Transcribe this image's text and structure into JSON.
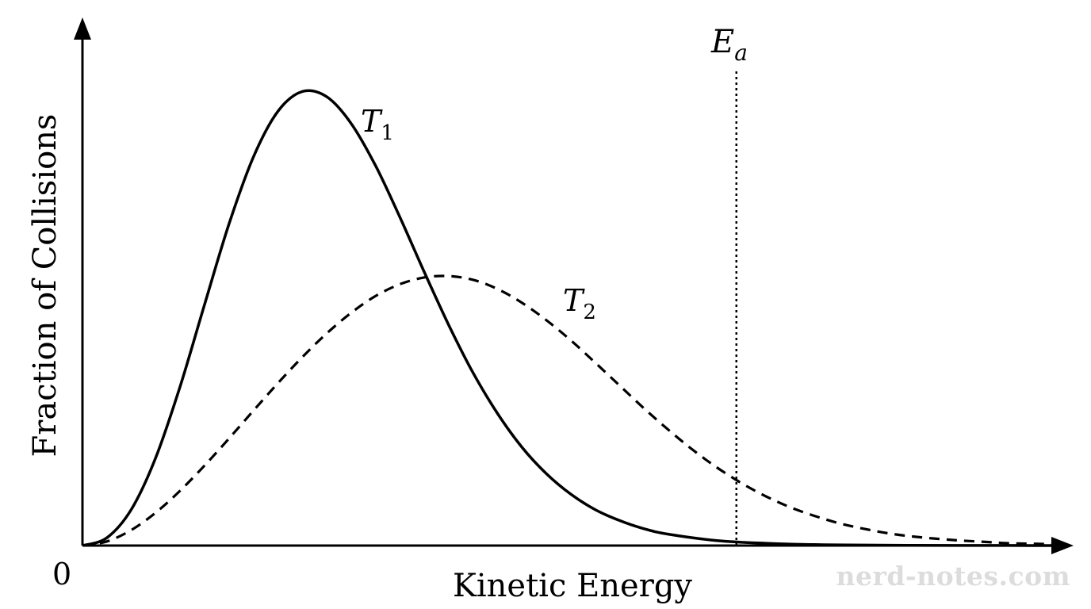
{
  "chart_data": {
    "type": "line",
    "title": "",
    "xlabel": "Kinetic Energy",
    "ylabel": "Fraction of Collisions",
    "origin_label": "0",
    "xlim": [
      0,
      10
    ],
    "ylim": [
      0,
      1
    ],
    "grid": false,
    "legend": "none",
    "series": [
      {
        "name": "T",
        "subscript": "1",
        "style": "solid",
        "x": [
          0,
          0.25,
          0.5,
          0.75,
          1.0,
          1.25,
          1.5,
          1.75,
          2.0,
          2.25,
          2.5,
          2.75,
          3.0,
          3.25,
          3.5,
          3.75,
          4.0,
          4.25,
          4.5,
          4.75,
          5.0,
          5.25,
          5.5,
          5.75,
          6.0,
          6.5,
          7.0,
          7.5,
          8.0,
          8.5,
          9.0,
          9.5,
          10.0
        ],
        "y": [
          0.0,
          0.017,
          0.079,
          0.192,
          0.348,
          0.527,
          0.703,
          0.85,
          0.95,
          0.994,
          0.983,
          0.925,
          0.833,
          0.72,
          0.6,
          0.484,
          0.379,
          0.29,
          0.216,
          0.158,
          0.113,
          0.079,
          0.055,
          0.037,
          0.025,
          0.011,
          0.005,
          0.002,
          0.001,
          0.0004,
          0.0002,
          0.0001,
          0.0
        ]
      },
      {
        "name": "T",
        "subscript": "2",
        "style": "dashed",
        "x": [
          0,
          0.25,
          0.5,
          0.75,
          1.0,
          1.25,
          1.5,
          1.75,
          2.0,
          2.25,
          2.5,
          2.75,
          3.0,
          3.25,
          3.5,
          3.75,
          4.0,
          4.25,
          4.5,
          4.75,
          5.0,
          5.25,
          5.5,
          5.75,
          6.0,
          6.25,
          6.5,
          6.75,
          7.0,
          7.25,
          7.5,
          7.75,
          8.0,
          8.25,
          8.5,
          8.75,
          9.0,
          9.25,
          9.5,
          9.75,
          10.0
        ],
        "y": [
          0.0,
          0.009,
          0.034,
          0.072,
          0.12,
          0.175,
          0.234,
          0.295,
          0.355,
          0.412,
          0.464,
          0.509,
          0.546,
          0.572,
          0.587,
          0.59,
          0.582,
          0.562,
          0.532,
          0.494,
          0.45,
          0.401,
          0.351,
          0.301,
          0.254,
          0.21,
          0.171,
          0.137,
          0.108,
          0.084,
          0.065,
          0.049,
          0.037,
          0.027,
          0.02,
          0.015,
          0.011,
          0.008,
          0.005,
          0.004,
          0.003
        ]
      }
    ],
    "annotations": [
      {
        "name": "E",
        "subscript": "a",
        "x": 6.7,
        "style": "dotted-vertical"
      }
    ]
  },
  "watermark": "nerd-notes.com"
}
